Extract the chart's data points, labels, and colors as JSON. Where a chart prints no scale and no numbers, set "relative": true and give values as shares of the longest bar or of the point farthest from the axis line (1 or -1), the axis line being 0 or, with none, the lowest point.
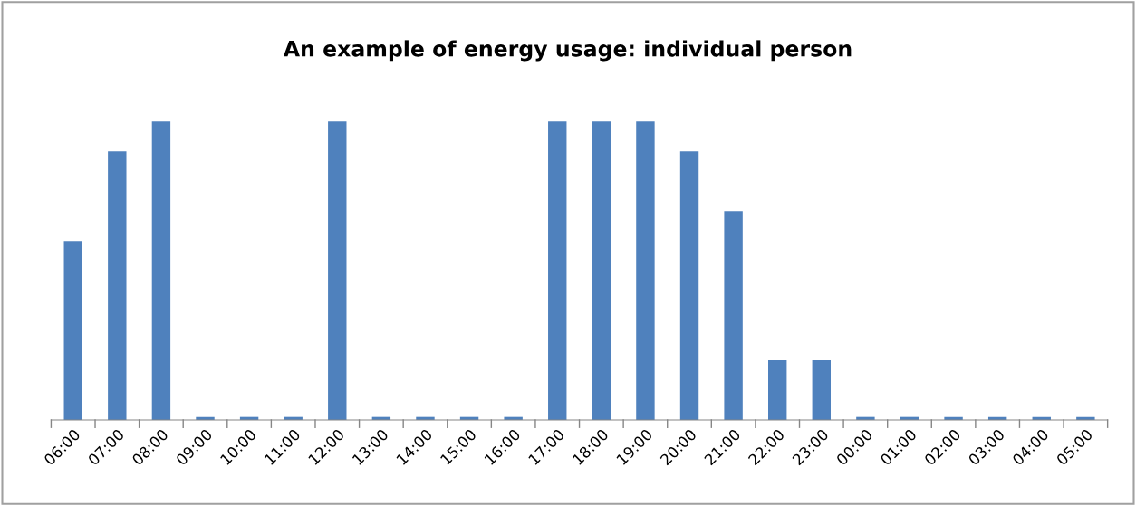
{
  "chart_data": {
    "type": "bar",
    "title": "An example of energy usage: individual person",
    "relative": true,
    "categories": [
      "06:00",
      "07:00",
      "08:00",
      "09:00",
      "10:00",
      "11:00",
      "12:00",
      "13:00",
      "14:00",
      "15:00",
      "16:00",
      "17:00",
      "18:00",
      "19:00",
      "20:00",
      "21:00",
      "22:00",
      "23:00",
      "00:00",
      "01:00",
      "02:00",
      "03:00",
      "04:00",
      "05:00"
    ],
    "values": [
      0.6,
      0.9,
      1,
      0.01,
      0.01,
      0.01,
      1,
      0.01,
      0.01,
      0.01,
      0.01,
      1,
      1,
      1,
      0.9,
      0.7,
      0.2,
      0.2,
      0.01,
      0.01,
      0.01,
      0.01,
      0.01,
      0.01
    ],
    "color": "#4f81bd",
    "grid": false,
    "legend": false
  }
}
